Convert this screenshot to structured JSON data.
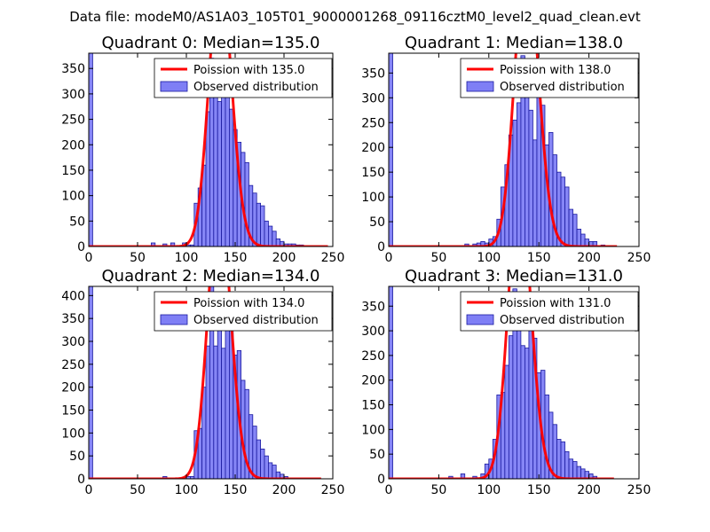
{
  "figure_title": "Data file: modeM0/AS1A03_105T01_9000001268_09116cztM0_level2_quad_clean.evt",
  "colors": {
    "hist_fill": "#7f7ff5",
    "hist_edge": "#1a1aa0",
    "poisson_line": "#ff0000"
  },
  "chart_data": [
    {
      "type": "bar",
      "title": "Quadrant 0: Median=135.0",
      "median": 135.0,
      "xlim": [
        0,
        250
      ],
      "ylim": [
        0,
        380
      ],
      "xticks": [
        0,
        50,
        100,
        150,
        200,
        250
      ],
      "yticks": [
        0,
        50,
        100,
        150,
        200,
        250,
        300,
        350
      ],
      "bin_width": 4,
      "bins": [
        [
          0,
          384
        ],
        [
          64,
          7
        ],
        [
          76,
          5
        ],
        [
          84,
          7
        ],
        [
          96,
          7
        ],
        [
          100,
          3
        ],
        [
          104,
          3
        ],
        [
          108,
          85
        ],
        [
          112,
          115
        ],
        [
          116,
          160
        ],
        [
          120,
          265
        ],
        [
          124,
          370
        ],
        [
          128,
          305
        ],
        [
          132,
          285
        ],
        [
          136,
          320
        ],
        [
          140,
          365
        ],
        [
          144,
          270
        ],
        [
          148,
          230
        ],
        [
          152,
          205
        ],
        [
          156,
          185
        ],
        [
          160,
          165
        ],
        [
          164,
          120
        ],
        [
          168,
          105
        ],
        [
          172,
          85
        ],
        [
          176,
          80
        ],
        [
          180,
          50
        ],
        [
          184,
          40
        ],
        [
          188,
          30
        ],
        [
          192,
          15
        ],
        [
          196,
          10
        ],
        [
          200,
          5
        ],
        [
          204,
          5
        ],
        [
          208,
          5
        ],
        [
          212,
          3
        ],
        [
          216,
          3
        ]
      ],
      "poisson_mean": 135.0,
      "curve_x": [
        0,
        245
      ],
      "legend": {
        "line_label": "Poission with 135.0",
        "hist_label": "Observed distribution",
        "loc": "upper right"
      }
    },
    {
      "type": "bar",
      "title": "Quadrant 1: Median=138.0",
      "median": 138.0,
      "xlim": [
        0,
        250
      ],
      "ylim": [
        0,
        390
      ],
      "xticks": [
        0,
        50,
        100,
        150,
        200,
        250
      ],
      "yticks": [
        0,
        50,
        100,
        150,
        200,
        250,
        300,
        350
      ],
      "bin_width": 4,
      "bins": [
        [
          0,
          392
        ],
        [
          76,
          5
        ],
        [
          84,
          5
        ],
        [
          88,
          7
        ],
        [
          92,
          10
        ],
        [
          96,
          7
        ],
        [
          100,
          15
        ],
        [
          104,
          20
        ],
        [
          108,
          55
        ],
        [
          112,
          120
        ],
        [
          116,
          165
        ],
        [
          120,
          225
        ],
        [
          124,
          255
        ],
        [
          128,
          290
        ],
        [
          132,
          385
        ],
        [
          136,
          350
        ],
        [
          140,
          275
        ],
        [
          144,
          215
        ],
        [
          148,
          350
        ],
        [
          152,
          285
        ],
        [
          156,
          205
        ],
        [
          160,
          230
        ],
        [
          164,
          185
        ],
        [
          168,
          150
        ],
        [
          172,
          140
        ],
        [
          176,
          120
        ],
        [
          180,
          75
        ],
        [
          184,
          65
        ],
        [
          188,
          35
        ],
        [
          192,
          25
        ],
        [
          196,
          15
        ],
        [
          200,
          10
        ],
        [
          204,
          10
        ],
        [
          212,
          3
        ]
      ],
      "poisson_mean": 138.0,
      "curve_x": [
        0,
        228
      ],
      "legend": {
        "line_label": "Poission with 138.0",
        "hist_label": "Observed distribution",
        "loc": "upper right"
      }
    },
    {
      "type": "bar",
      "title": "Quadrant 2: Median=134.0",
      "median": 134.0,
      "xlim": [
        0,
        250
      ],
      "ylim": [
        0,
        420
      ],
      "xticks": [
        0,
        50,
        100,
        150,
        200,
        250
      ],
      "yticks": [
        0,
        50,
        100,
        150,
        200,
        250,
        300,
        350,
        400
      ],
      "bin_width": 4,
      "bins": [
        [
          0,
          420
        ],
        [
          76,
          5
        ],
        [
          96,
          3
        ],
        [
          100,
          5
        ],
        [
          104,
          5
        ],
        [
          108,
          105
        ],
        [
          112,
          110
        ],
        [
          116,
          200
        ],
        [
          120,
          290
        ],
        [
          124,
          420
        ],
        [
          128,
          290
        ],
        [
          132,
          405
        ],
        [
          136,
          285
        ],
        [
          140,
          400
        ],
        [
          144,
          375
        ],
        [
          148,
          270
        ],
        [
          152,
          280
        ],
        [
          156,
          215
        ],
        [
          160,
          195
        ],
        [
          164,
          140
        ],
        [
          168,
          115
        ],
        [
          172,
          85
        ],
        [
          176,
          65
        ],
        [
          180,
          50
        ],
        [
          184,
          35
        ],
        [
          188,
          30
        ],
        [
          192,
          15
        ],
        [
          196,
          10
        ],
        [
          200,
          5
        ]
      ],
      "poisson_mean": 134.0,
      "curve_x": [
        0,
        238
      ],
      "legend": {
        "line_label": "Poission with 134.0",
        "hist_label": "Observed distribution",
        "loc": "upper right"
      }
    },
    {
      "type": "bar",
      "title": "Quadrant 3: Median=131.0",
      "median": 131.0,
      "xlim": [
        0,
        250
      ],
      "ylim": [
        0,
        390
      ],
      "xticks": [
        0,
        50,
        100,
        150,
        200,
        250
      ],
      "yticks": [
        0,
        50,
        100,
        150,
        200,
        250,
        300,
        350
      ],
      "bin_width": 4,
      "bins": [
        [
          0,
          390
        ],
        [
          60,
          5
        ],
        [
          72,
          10
        ],
        [
          84,
          5
        ],
        [
          92,
          10
        ],
        [
          96,
          30
        ],
        [
          100,
          40
        ],
        [
          104,
          80
        ],
        [
          108,
          170
        ],
        [
          112,
          175
        ],
        [
          116,
          230
        ],
        [
          120,
          290
        ],
        [
          124,
          385
        ],
        [
          128,
          350
        ],
        [
          132,
          270
        ],
        [
          136,
          265
        ],
        [
          140,
          360
        ],
        [
          144,
          285
        ],
        [
          148,
          215
        ],
        [
          152,
          220
        ],
        [
          156,
          170
        ],
        [
          160,
          135
        ],
        [
          164,
          110
        ],
        [
          168,
          80
        ],
        [
          172,
          75
        ],
        [
          176,
          55
        ],
        [
          180,
          40
        ],
        [
          184,
          35
        ],
        [
          188,
          25
        ],
        [
          192,
          20
        ],
        [
          196,
          15
        ],
        [
          200,
          10
        ],
        [
          204,
          5
        ]
      ],
      "poisson_mean": 131.0,
      "curve_x": [
        0,
        225
      ],
      "legend": {
        "line_label": "Poission with 131.0",
        "hist_label": "Observed distribution",
        "loc": "upper right"
      }
    }
  ]
}
